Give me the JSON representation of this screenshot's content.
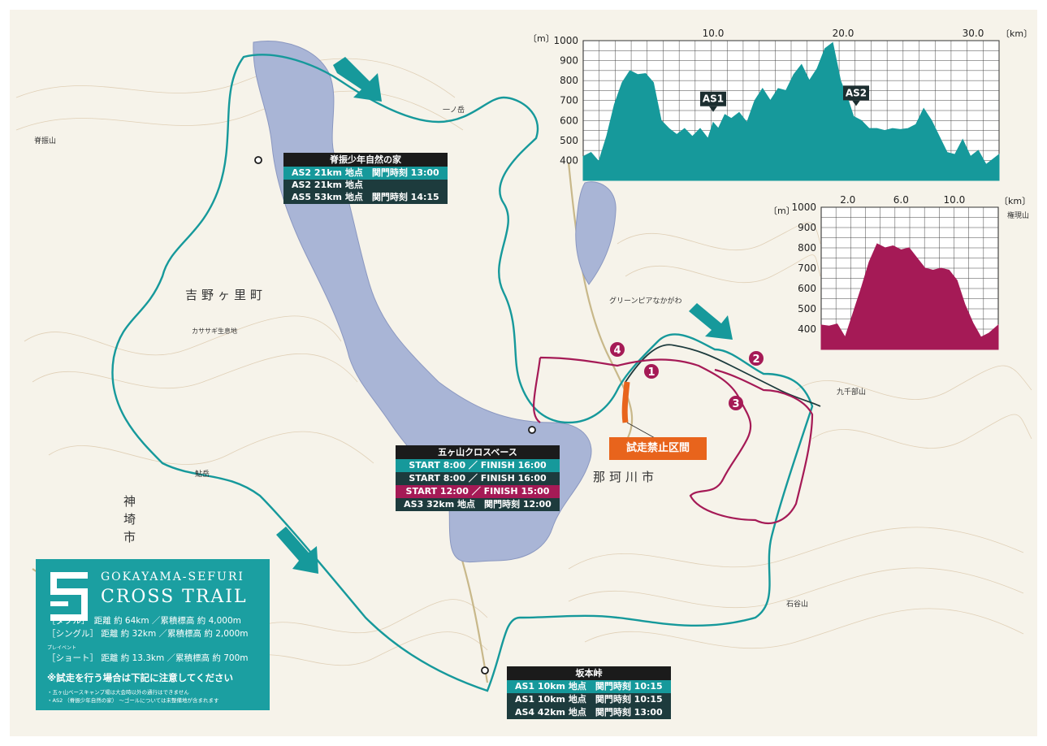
{
  "colors": {
    "double": "#16999b",
    "single": "#1d3b3d",
    "short": "#a51a56",
    "closed": "#e8641c",
    "water": "#a9b5d6"
  },
  "places": {
    "yoshinogari": "吉野ヶ里町",
    "kanzaki": "神埼市",
    "nakagawa": "那珂川市",
    "kasasagi": "カササギ生息地",
    "greenpia": "グリーンピアなかがわ",
    "kujusan": "九千部山",
    "gongen": "権現山",
    "ishiya": "石谷山",
    "ichinotake": "一ノ岳",
    "sefuri": "脊振山",
    "yagidake": "鮎岳"
  },
  "closed_label": "試走禁止区間",
  "markers": [
    "1",
    "2",
    "3",
    "4"
  ],
  "stations": {
    "sefuri_house": {
      "title": "脊振少年自然の家",
      "rows": [
        "AS2 21km 地点　関門時刻 13:00",
        "AS2 21km 地点",
        "AS5 53km 地点　関門時刻 14:15"
      ]
    },
    "gokayama": {
      "title": "五ヶ山クロスベース",
      "rows": [
        "START 8:00 ／ FINISH 16:00",
        "START 8:00 ／ FINISH 16:00",
        "START 12:00 ／ FINISH 15:00",
        "AS3 32km 地点　関門時刻 12:00"
      ]
    },
    "sakamoto": {
      "title": "坂本峠",
      "rows": [
        "AS1 10km 地点　関門時刻 10:15",
        "AS1 10km 地点　関門時刻 10:15",
        "AS4 42km 地点　関門時刻 13:00"
      ]
    }
  },
  "legend": {
    "title1": "GOKAYAMA-SEFURI",
    "title2": "CROSS TRAIL",
    "double": "［ダブル］　距離 約 64km ／累積標高 約 4,000m",
    "single": "［シングル］ 距離 約 32km ／累積標高 約 2,000m",
    "pre_event": "プレイベント",
    "short": "［ショート］ 距離 約 13.3km ／累積標高 約 700m",
    "note": "※試走を行う場合は下記に注意してください",
    "note1": "・五ヶ山ベースキャンプ場は大会時以外の通行はできません",
    "note2": "・AS2 （脊振少年自然の家） 〜ゴールについては未整備地が含まれます"
  },
  "chart_data": [
    {
      "type": "area",
      "xunit": "〔km〕",
      "yunit": "〔m〕",
      "xticks": [
        "10.0",
        "20.0",
        "30.0"
      ],
      "yticks": [
        "400",
        "500",
        "600",
        "700",
        "800",
        "900",
        "1000"
      ],
      "xlim": [
        0,
        32
      ],
      "ylim": [
        300,
        1000
      ],
      "x": [
        0,
        0.6,
        1.2,
        1.8,
        2.4,
        3.0,
        3.6,
        4.2,
        4.8,
        5.4,
        6.0,
        6.6,
        7.2,
        7.8,
        8.4,
        9.0,
        9.6,
        10.0,
        10.4,
        10.9,
        11.4,
        12.0,
        12.6,
        13.2,
        13.8,
        14.4,
        15.0,
        15.6,
        16.2,
        16.8,
        17.4,
        18.0,
        18.6,
        19.2,
        19.8,
        20.4,
        20.8,
        21.4,
        22.0,
        22.6,
        23.2,
        23.8,
        24.4,
        25.0,
        25.6,
        26.2,
        26.8,
        27.4,
        28.0,
        28.6,
        29.2,
        29.8,
        30.4,
        31.0,
        31.6,
        32.0
      ],
      "values": [
        420,
        440,
        395,
        520,
        680,
        790,
        850,
        830,
        835,
        790,
        600,
        560,
        530,
        560,
        520,
        560,
        510,
        590,
        560,
        630,
        610,
        640,
        590,
        700,
        760,
        700,
        760,
        750,
        830,
        880,
        800,
        860,
        960,
        990,
        800,
        700,
        620,
        600,
        560,
        560,
        550,
        560,
        555,
        560,
        580,
        660,
        600,
        520,
        440,
        430,
        505,
        420,
        450,
        380,
        410,
        430
      ],
      "markers": [
        {
          "label": "AS1",
          "x": 10.0
        },
        {
          "label": "AS2",
          "x": 21.0
        }
      ]
    },
    {
      "type": "area",
      "xunit": "〔km〕",
      "yunit": "〔m〕",
      "xticks": [
        "2.0",
        "6.0",
        "10.0"
      ],
      "yticks": [
        "400",
        "500",
        "600",
        "700",
        "800",
        "900",
        "1000"
      ],
      "xlim": [
        0,
        13.3
      ],
      "ylim": [
        300,
        1000
      ],
      "x": [
        0,
        0.6,
        1.2,
        1.8,
        2.4,
        3.0,
        3.6,
        4.2,
        4.8,
        5.4,
        6.0,
        6.6,
        7.2,
        7.8,
        8.4,
        9.0,
        9.6,
        10.2,
        10.8,
        11.4,
        12.0,
        12.6,
        13.3
      ],
      "values": [
        420,
        415,
        425,
        360,
        480,
        600,
        730,
        820,
        800,
        810,
        790,
        800,
        750,
        700,
        690,
        700,
        690,
        640,
        520,
        430,
        360,
        380,
        420
      ]
    }
  ]
}
